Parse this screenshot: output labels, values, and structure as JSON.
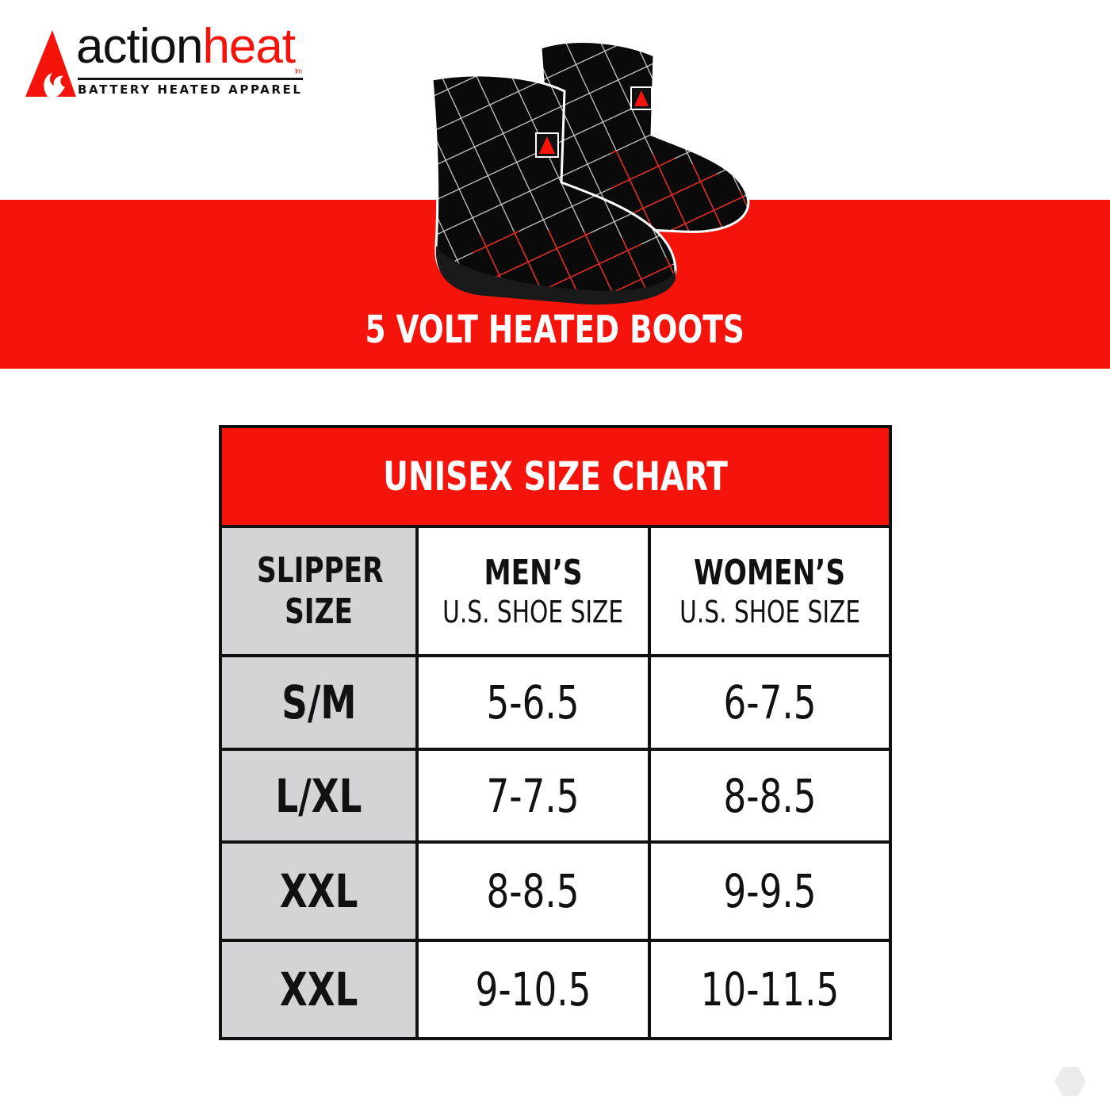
{
  "brand": {
    "name_part1": "action",
    "name_part2": "heat",
    "trademark": "tm",
    "tagline": "BATTERY HEATED APPAREL"
  },
  "colors": {
    "accent": "#f5140c",
    "text": "#111111",
    "label_bg": "#d4d4d6"
  },
  "banner": {
    "title": "5 VOLT HEATED BOOTS"
  },
  "size_chart": {
    "title": "UNISEX SIZE CHART",
    "headers": [
      {
        "title": "SLIPPER SIZE",
        "subtitle": ""
      },
      {
        "title": "MEN’S",
        "subtitle": "U.S. SHOE SIZE"
      },
      {
        "title": "WOMEN’S",
        "subtitle": "U.S. SHOE SIZE"
      }
    ],
    "rows": [
      {
        "size": "S/M",
        "mens": "5-6.5",
        "womens": "6-7.5"
      },
      {
        "size": "L/XL",
        "mens": "7-7.5",
        "womens": "8-8.5"
      },
      {
        "size": "XXL",
        "mens": "8-8.5",
        "womens": "9-9.5"
      },
      {
        "size": "XXL",
        "mens": "9-10.5",
        "womens": "10-11.5"
      }
    ]
  }
}
